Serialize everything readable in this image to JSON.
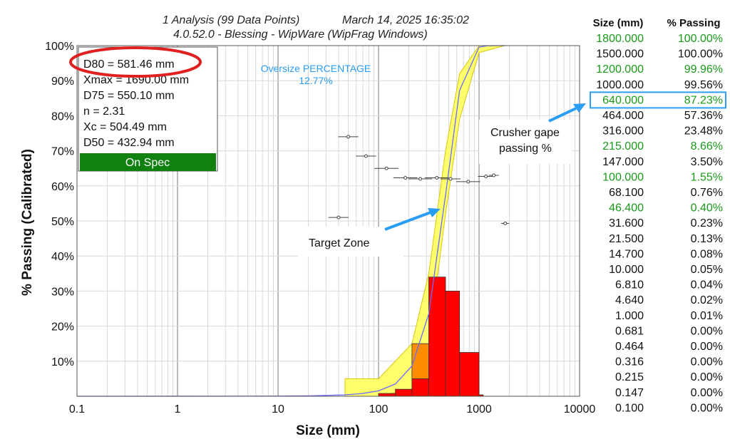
{
  "header": {
    "line1_left": "1 Analysis (99 Data Points)",
    "line1_right": "March 14, 2025 16:35:02",
    "line2": "4.0.52.0  -  Blessing - WipWare (WipFrag Windows)"
  },
  "stats": {
    "lines": [
      "D80 = 581.46 mm",
      "Xmax = 1690.00 mm",
      "D75 = 550.10 mm",
      "n = 2.31",
      "Xc = 504.49 mm",
      "D50 = 432.94 mm"
    ],
    "status": "On Spec"
  },
  "oversize": {
    "label": "Oversize PERCENTAGE",
    "value": "12.77%"
  },
  "annotations": {
    "target_zone": "Target Zone",
    "crusher_line1": "Crusher gape",
    "crusher_line2": "passing %"
  },
  "colors": {
    "histogram": "#ff0000",
    "histogram_orange": "#ff8c00",
    "target_band": "#ffff66",
    "curve": "#6a6aff",
    "green_text": "#1a9a1a",
    "highlight": "#2a9df4",
    "status_bg": "#108010",
    "circle": "#e02020"
  },
  "table": {
    "headers": [
      "Size (mm)",
      "% Passing"
    ],
    "rows": [
      {
        "size": "1800.000",
        "pct": "100.00%",
        "green": true
      },
      {
        "size": "1500.000",
        "pct": "100.00%",
        "green": false
      },
      {
        "size": "1200.000",
        "pct": "99.96%",
        "green": true
      },
      {
        "size": "1000.000",
        "pct": "99.56%",
        "green": false
      },
      {
        "size": "640.000",
        "pct": "87.23%",
        "green": true,
        "highlight": true
      },
      {
        "size": "464.000",
        "pct": "57.36%",
        "green": false
      },
      {
        "size": "316.000",
        "pct": "23.48%",
        "green": false
      },
      {
        "size": "215.000",
        "pct": "8.66%",
        "green": true
      },
      {
        "size": "147.000",
        "pct": "3.50%",
        "green": false
      },
      {
        "size": "100.000",
        "pct": "1.55%",
        "green": true
      },
      {
        "size": "68.100",
        "pct": "0.76%",
        "green": false
      },
      {
        "size": "46.400",
        "pct": "0.40%",
        "green": true
      },
      {
        "size": "31.600",
        "pct": "0.23%",
        "green": false
      },
      {
        "size": "21.500",
        "pct": "0.13%",
        "green": false
      },
      {
        "size": "14.700",
        "pct": "0.08%",
        "green": false
      },
      {
        "size": "10.000",
        "pct": "0.05%",
        "green": false
      },
      {
        "size": "6.810",
        "pct": "0.04%",
        "green": false
      },
      {
        "size": "4.640",
        "pct": "0.02%",
        "green": false
      },
      {
        "size": "1.000",
        "pct": "0.01%",
        "green": false
      },
      {
        "size": "0.681",
        "pct": "0.00%",
        "green": false
      },
      {
        "size": "0.464",
        "pct": "0.00%",
        "green": false
      },
      {
        "size": "0.316",
        "pct": "0.00%",
        "green": false
      },
      {
        "size": "0.215",
        "pct": "0.00%",
        "green": false
      },
      {
        "size": "0.147",
        "pct": "0.00%",
        "green": false
      },
      {
        "size": "0.100",
        "pct": "0.00%",
        "green": false
      }
    ]
  },
  "chart_data": {
    "type": "line",
    "xlabel": "Size (mm)",
    "ylabel": "% Passing (Calibrated)",
    "x_scale": "log",
    "xlim": [
      0.1,
      10000
    ],
    "ylim": [
      0,
      100
    ],
    "x_ticks": [
      "0.1",
      "1",
      "10",
      "100",
      "1000",
      "10000"
    ],
    "y_ticks": [
      "10%",
      "20%",
      "30%",
      "40%",
      "50%",
      "60%",
      "70%",
      "80%",
      "90%",
      "100%"
    ],
    "grid": true,
    "series": [
      {
        "kind": "line",
        "x": [
          0.1,
          1,
          4.64,
          10,
          21.5,
          46.4,
          68.1,
          100,
          147,
          215,
          316,
          464,
          640,
          1000,
          1200,
          1500,
          1800
        ],
        "y": [
          0,
          0.01,
          0.02,
          0.05,
          0.13,
          0.4,
          0.76,
          1.55,
          3.5,
          8.66,
          23.48,
          57.36,
          87.23,
          99.56,
          99.96,
          100,
          100
        ]
      },
      {
        "kind": "histogram",
        "bins": [
          {
            "x0": 100,
            "x1": 147,
            "y": 0.8
          },
          {
            "x0": 147,
            "x1": 215,
            "y": 2
          },
          {
            "x0": 215,
            "x1": 316,
            "y": 5
          },
          {
            "x0": 316,
            "x1": 464,
            "y": 34
          },
          {
            "x0": 464,
            "x1": 640,
            "y": 30
          },
          {
            "x0": 640,
            "x1": 1000,
            "y": 12.5
          },
          {
            "x0": 1000,
            "x1": 1100,
            "y": 0.4
          }
        ],
        "orange_bins": [
          {
            "x0": 215,
            "x1": 316,
            "y": 15
          }
        ]
      },
      {
        "kind": "band",
        "x": [
          46.4,
          100,
          215,
          316,
          464,
          640,
          1000,
          1800
        ],
        "lower": [
          0,
          0,
          2,
          15,
          52,
          79,
          98,
          100
        ],
        "upper": [
          5,
          5,
          15,
          35,
          70,
          92,
          100,
          100
        ]
      },
      {
        "kind": "scatter",
        "points": [
          {
            "x": 40,
            "y": 51,
            "err": 0.1
          },
          {
            "x": 50,
            "y": 74,
            "err": 0.1
          },
          {
            "x": 75,
            "y": 68.5,
            "err": 0.1
          },
          {
            "x": 120,
            "y": 65,
            "err": 0.12
          },
          {
            "x": 185,
            "y": 62.3,
            "err": 0.12
          },
          {
            "x": 260,
            "y": 62,
            "err": 0.12
          },
          {
            "x": 380,
            "y": 62.3,
            "err": 0.12
          },
          {
            "x": 520,
            "y": 62,
            "err": 0.1
          },
          {
            "x": 780,
            "y": 61.2,
            "err": 0.12
          },
          {
            "x": 1170,
            "y": 62.7,
            "err": 0.08
          },
          {
            "x": 1400,
            "y": 63,
            "err": 0.05
          },
          {
            "x": 1820,
            "y": 49.3,
            "err": 0.04
          }
        ]
      }
    ]
  }
}
